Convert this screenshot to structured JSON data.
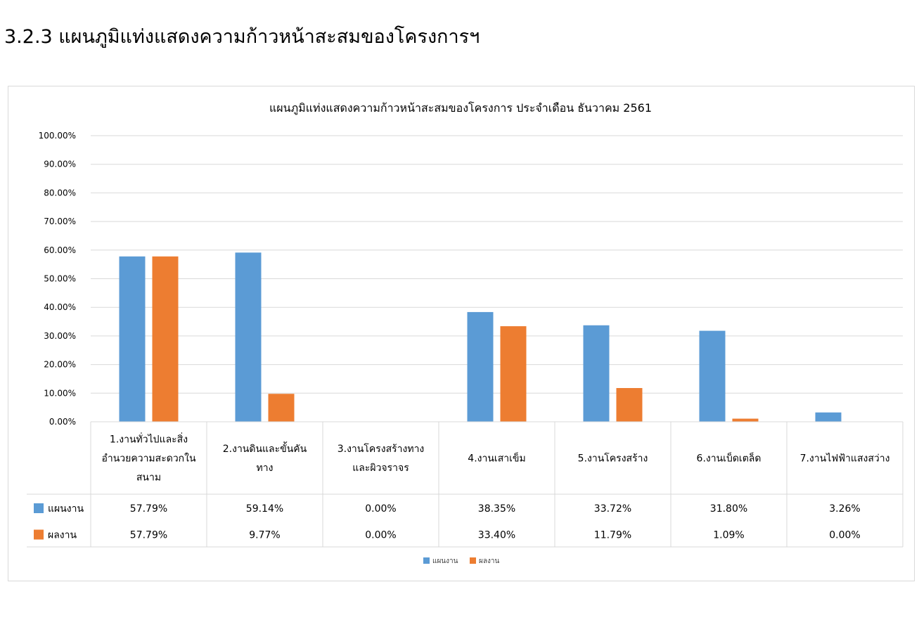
{
  "page": {
    "heading": "3.2.3  แผนภูมิแท่งแสดงความก้าวหน้าสะสมของโครงการฯ"
  },
  "chart_data": {
    "type": "bar",
    "title": "แผนภูมิแท่งแสดงความก้าวหน้าสะสมของโครงการ ประจำเดือน ธันวาคม 2561",
    "categories": [
      [
        "1.งานทั่วไปและสิ่ง",
        "อำนวยความสะดวกใน",
        "สนาม"
      ],
      [
        "2.งานดินและขั้นคัน",
        "ทาง"
      ],
      [
        "3.งานโครงสร้างทาง",
        "และผิวจราจร"
      ],
      [
        "4.งานเสาเข็ม"
      ],
      [
        "5.งานโครงสร้าง"
      ],
      [
        "6.งานเบ็ดเตล็ด"
      ],
      [
        "7.งานไฟฟ้าแสงสว่าง"
      ]
    ],
    "series": [
      {
        "name": "แผนงาน",
        "color": "#5b9bd5",
        "values": [
          57.79,
          59.14,
          0.0,
          38.35,
          33.72,
          31.8,
          3.26
        ],
        "labels": [
          "57.79%",
          "59.14%",
          "0.00%",
          "38.35%",
          "33.72%",
          "31.80%",
          "3.26%"
        ]
      },
      {
        "name": "ผลงาน",
        "color": "#ed7d31",
        "values": [
          57.79,
          9.77,
          0.0,
          33.4,
          11.79,
          1.09,
          0.0
        ],
        "labels": [
          "57.79%",
          "9.77%",
          "0.00%",
          "33.40%",
          "11.79%",
          "1.09%",
          "0.00%"
        ]
      }
    ],
    "ylim": [
      0,
      100
    ],
    "yticks": [
      0,
      10,
      20,
      30,
      40,
      50,
      60,
      70,
      80,
      90,
      100
    ],
    "ytick_labels": [
      "0.00%",
      "10.00%",
      "20.00%",
      "30.00%",
      "40.00%",
      "50.00%",
      "60.00%",
      "70.00%",
      "80.00%",
      "90.00%",
      "100.00%"
    ],
    "grid": true,
    "legend": "bottom-center",
    "data_table": true
  }
}
